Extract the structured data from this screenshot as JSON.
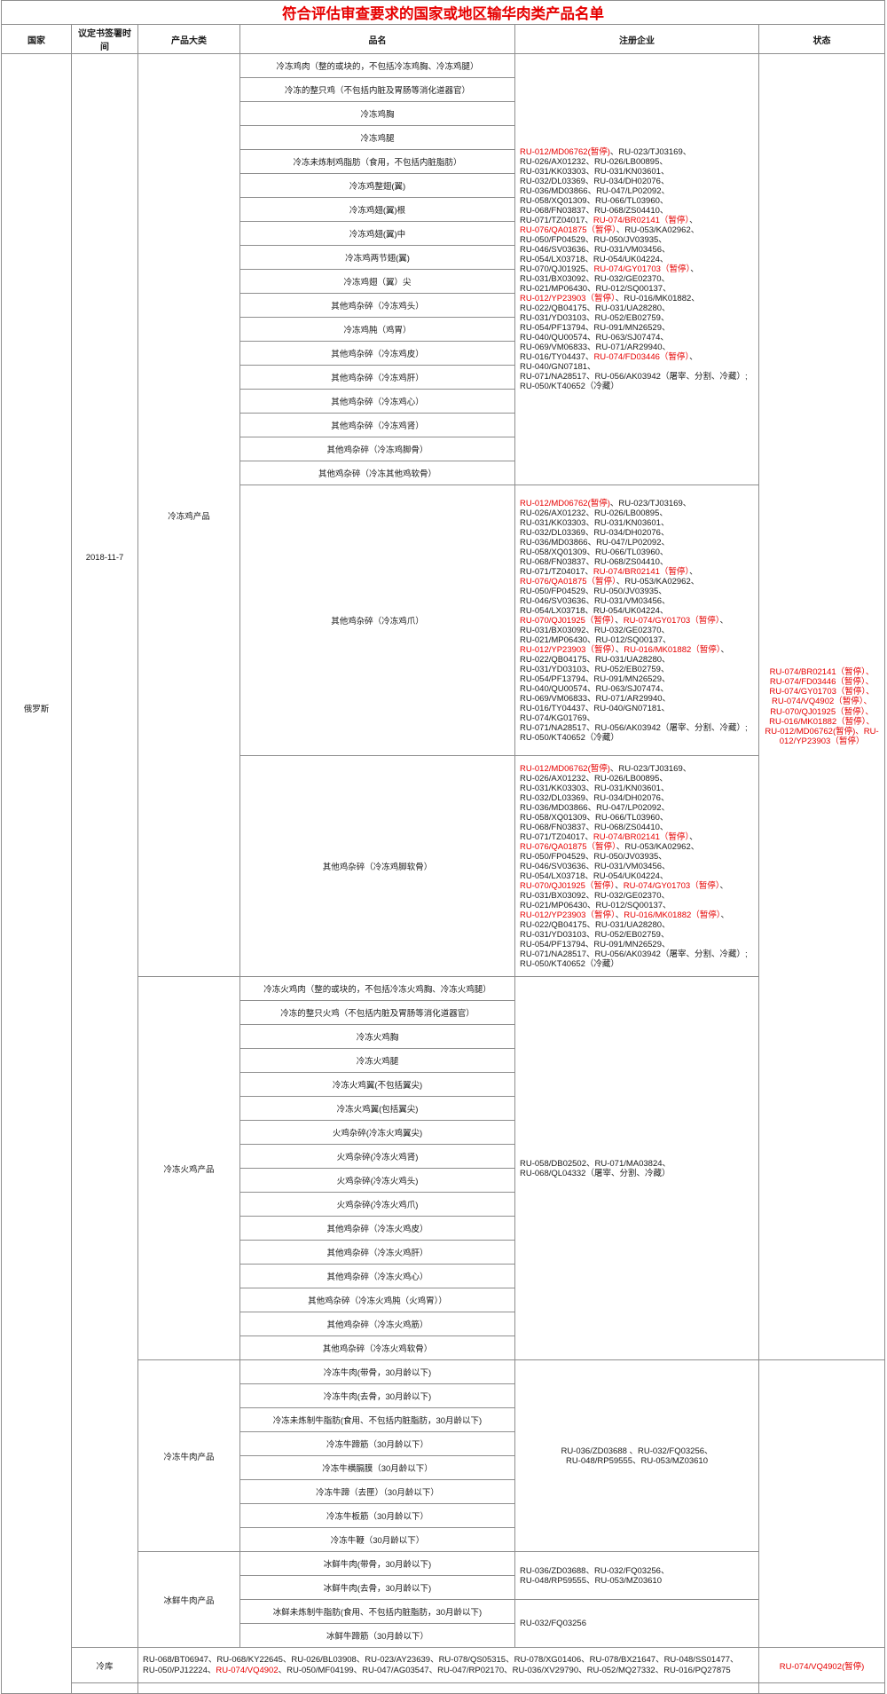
{
  "title": "符合评估审查要求的国家或地区输华肉类产品名单",
  "header": {
    "country": "国家",
    "protocol_date": "议定书签署时间",
    "category": "产品大类",
    "product": "品名",
    "enterprise": "注册企业",
    "status": "状态"
  },
  "country": "俄罗斯",
  "protocol_date": "2018-11-7",
  "status_color": "#e60000",
  "frozen_chicken": {
    "category": "冷冻鸡产品",
    "products": [
      "冷冻鸡肉（整的或块的，不包括冷冻鸡胸、冷冻鸡腿）",
      "冷冻的整只鸡（不包括内脏及胃肠等消化道器官）",
      "冷冻鸡胸",
      "冷冻鸡腿",
      "冷冻未炼制鸡脂肪（食用，不包括内脏脂肪）",
      "冷冻鸡整翅(翼)",
      "冷冻鸡翅(翼)根",
      "冷冻鸡翅(翼)中",
      "冷冻鸡两节翅(翼)",
      "冷冻鸡翅（翼）尖",
      "其他鸡杂碎（冷冻鸡头）",
      "冷冻鸡肫（鸡胃）",
      "其他鸡杂碎（冷冻鸡皮）",
      "其他鸡杂碎（冷冻鸡肝）",
      "其他鸡杂碎（冷冻鸡心）",
      "其他鸡杂碎（冷冻鸡肾）",
      "其他鸡杂碎（冷冻鸡脚骨）",
      "其他鸡杂碎（冷冻其他鸡软骨）"
    ],
    "claw_product": "其他鸡杂碎（冷冻鸡爪）",
    "cartilage_product": "其他鸡杂碎（冷冻鸡脚软骨）",
    "enterprises_main": [
      [
        {
          "t": "RU-012/MD06762(暂停)",
          "r": 1
        },
        {
          "t": "、RU-023/TJ03169、"
        }
      ],
      [
        {
          "t": "RU-026/AX01232、RU-026/LB00895、"
        }
      ],
      [
        {
          "t": "RU-031/KK03303、RU-031/KN03601、"
        }
      ],
      [
        {
          "t": "RU-032/DL03369、RU-034/DH02076、"
        }
      ],
      [
        {
          "t": "RU-036/MD03866、RU-047/LP02092、"
        }
      ],
      [
        {
          "t": "RU-058/XQ01309、RU-066/TL03960、"
        }
      ],
      [
        {
          "t": "RU-068/FN03837、RU-068/ZS04410、"
        }
      ],
      [
        {
          "t": "RU-071/TZ04017、"
        },
        {
          "t": "RU-074/BR02141（暂停）",
          "r": 1
        },
        {
          "t": "、"
        }
      ],
      [
        {
          "t": "RU-076/QA01875（暂停）",
          "r": 1
        },
        {
          "t": "、RU-053/KA02962、"
        }
      ],
      [
        {
          "t": "RU-050/FP04529、RU-050/JV03935、"
        }
      ],
      [
        {
          "t": "RU-046/SV03636、RU-031/VM03456、"
        }
      ],
      [
        {
          "t": "RU-054/LX03718、RU-054/UK04224、"
        }
      ],
      [
        {
          "t": "RU-070/QJ01925、"
        },
        {
          "t": "RU-074/GY01703（暂停）",
          "r": 1
        },
        {
          "t": "、"
        }
      ],
      [
        {
          "t": "RU-031/BX03092、RU-032/GE02370、"
        }
      ],
      [
        {
          "t": "RU-021/MP06430、RU-012/SQ00137、"
        }
      ],
      [
        {
          "t": "RU-012/YP23903（暂停）",
          "r": 1
        },
        {
          "t": "、RU-016/MK01882、"
        }
      ],
      [
        {
          "t": "RU-022/QB04175、RU-031/UA28280、"
        }
      ],
      [
        {
          "t": "RU-031/YD03103、RU-052/EB02759、"
        }
      ],
      [
        {
          "t": "RU-054/PF13794、RU-091/MN26529、"
        }
      ],
      [
        {
          "t": "RU-040/QU00574、RU-063/SJ07474、"
        }
      ],
      [
        {
          "t": "RU-069/VM06833、RU-071/AR29940、"
        }
      ],
      [
        {
          "t": "RU-016/TY04437、"
        },
        {
          "t": "RU-074/FD03446（暂停）",
          "r": 1
        },
        {
          "t": "、"
        }
      ],
      [
        {
          "t": "RU-040/GN07181、"
        }
      ],
      [
        {
          "t": "RU-071/NA28517、RU-056/AK03942（屠宰、分割、冷藏）;"
        }
      ],
      [
        {
          "t": "RU-050/KT40652（冷藏）"
        }
      ]
    ],
    "enterprises_claw": [
      [
        {
          "t": "RU-012/MD06762(暂停)",
          "r": 1
        },
        {
          "t": "、RU-023/TJ03169、"
        }
      ],
      [
        {
          "t": "RU-026/AX01232、RU-026/LB00895、"
        }
      ],
      [
        {
          "t": "RU-031/KK03303、RU-031/KN03601、"
        }
      ],
      [
        {
          "t": "RU-032/DL03369、RU-034/DH02076、"
        }
      ],
      [
        {
          "t": "RU-036/MD03866、RU-047/LP02092、"
        }
      ],
      [
        {
          "t": "RU-058/XQ01309、RU-066/TL03960、"
        }
      ],
      [
        {
          "t": "RU-068/FN03837、RU-068/ZS04410、"
        }
      ],
      [
        {
          "t": "RU-071/TZ04017、"
        },
        {
          "t": "RU-074/BR02141（暂停）",
          "r": 1
        },
        {
          "t": "、"
        }
      ],
      [
        {
          "t": "RU-076/QA01875（暂停）",
          "r": 1
        },
        {
          "t": "、RU-053/KA02962、"
        }
      ],
      [
        {
          "t": "RU-050/FP04529、RU-050/JV03935、"
        }
      ],
      [
        {
          "t": "RU-046/SV03636、RU-031/VM03456、"
        }
      ],
      [
        {
          "t": "RU-054/LX03718、RU-054/UK04224、"
        }
      ],
      [
        {
          "t": "RU-070/QJ01925（暂停）",
          "r": 1
        },
        {
          "t": "、"
        },
        {
          "t": "RU-074/GY01703（暂停）",
          "r": 1
        },
        {
          "t": "、"
        }
      ],
      [
        {
          "t": "RU-031/BX03092、RU-032/GE02370、"
        }
      ],
      [
        {
          "t": "RU-021/MP06430、RU-012/SQ00137、"
        }
      ],
      [
        {
          "t": "RU-012/YP23903（暂停）",
          "r": 1
        },
        {
          "t": "、"
        },
        {
          "t": "RU-016/MK01882（暂停）",
          "r": 1
        },
        {
          "t": "、"
        }
      ],
      [
        {
          "t": "RU-022/QB04175、RU-031/UA28280、"
        }
      ],
      [
        {
          "t": "RU-031/YD03103、RU-052/EB02759、"
        }
      ],
      [
        {
          "t": "RU-054/PF13794、RU-091/MN26529、"
        }
      ],
      [
        {
          "t": "RU-040/QU00574、RU-063/SJ07474、"
        }
      ],
      [
        {
          "t": "RU-069/VM06833、RU-071/AR29940、"
        }
      ],
      [
        {
          "t": "RU-016/TY04437、RU-040/GN07181、"
        }
      ],
      [
        {
          "t": "RU-074/KG01769、"
        }
      ],
      [
        {
          "t": "RU-071/NA28517、RU-056/AK03942（屠宰、分割、冷藏）;"
        }
      ],
      [
        {
          "t": "RU-050/KT40652（冷藏）"
        }
      ]
    ],
    "enterprises_cartilage": [
      [
        {
          "t": "RU-012/MD06762(暂停)",
          "r": 1
        },
        {
          "t": "、RU-023/TJ03169、"
        }
      ],
      [
        {
          "t": "RU-026/AX01232、RU-026/LB00895、"
        }
      ],
      [
        {
          "t": "RU-031/KK03303、RU-031/KN03601、"
        }
      ],
      [
        {
          "t": "RU-032/DL03369、RU-034/DH02076、"
        }
      ],
      [
        {
          "t": "RU-036/MD03866、RU-047/LP02092、"
        }
      ],
      [
        {
          "t": "RU-058/XQ01309、RU-066/TL03960、"
        }
      ],
      [
        {
          "t": "RU-068/FN03837、RU-068/ZS04410、"
        }
      ],
      [
        {
          "t": "RU-071/TZ04017、"
        },
        {
          "t": "RU-074/BR02141（暂停）",
          "r": 1
        },
        {
          "t": "、"
        }
      ],
      [
        {
          "t": "RU-076/QA01875（暂停）",
          "r": 1
        },
        {
          "t": "、RU-053/KA02962、"
        }
      ],
      [
        {
          "t": "RU-050/FP04529、RU-050/JV03935、"
        }
      ],
      [
        {
          "t": "RU-046/SV03636、RU-031/VM03456、"
        }
      ],
      [
        {
          "t": "RU-054/LX03718、RU-054/UK04224、"
        }
      ],
      [
        {
          "t": "RU-070/QJ01925（暂停）",
          "r": 1
        },
        {
          "t": "、"
        },
        {
          "t": "RU-074/GY01703（暂停）",
          "r": 1
        },
        {
          "t": "、"
        }
      ],
      [
        {
          "t": "RU-031/BX03092、RU-032/GE02370、"
        }
      ],
      [
        {
          "t": "RU-021/MP06430、RU-012/SQ00137、"
        }
      ],
      [
        {
          "t": "RU-012/YP23903（暂停）",
          "r": 1
        },
        {
          "t": "、"
        },
        {
          "t": "RU-016/MK01882（暂停）",
          "r": 1
        },
        {
          "t": "、"
        }
      ],
      [
        {
          "t": "RU-022/QB04175、RU-031/UA28280、"
        }
      ],
      [
        {
          "t": "RU-031/YD03103、RU-052/EB02759、"
        }
      ],
      [
        {
          "t": "RU-054/PF13794、RU-091/MN26529、"
        }
      ],
      [
        {
          "t": "RU-071/NA28517、RU-056/AK03942（屠宰、分割、冷藏）;"
        }
      ],
      [
        {
          "t": "RU-050/KT40652（冷藏）"
        }
      ]
    ]
  },
  "frozen_turkey": {
    "category": "冷冻火鸡产品",
    "products": [
      "冷冻火鸡肉（整的或块的，不包括冷冻火鸡胸、冷冻火鸡腿）",
      "冷冻的整只火鸡（不包括内脏及胃肠等消化道器官）",
      "冷冻火鸡胸",
      "冷冻火鸡腿",
      "冷冻火鸡翼(不包括翼尖)",
      "冷冻火鸡翼(包括翼尖)",
      "火鸡杂碎(冷冻火鸡翼尖)",
      "火鸡杂碎(冷冻火鸡肾)",
      "火鸡杂碎(冷冻火鸡头)",
      "火鸡杂碎(冷冻火鸡爪)",
      "其他鸡杂碎（冷冻火鸡皮）",
      "其他鸡杂碎（冷冻火鸡肝）",
      "其他鸡杂碎（冷冻火鸡心）",
      "其他鸡杂碎（冷冻火鸡肫（火鸡胃））",
      "其他鸡杂碎（冷冻火鸡筋）",
      "其他鸡杂碎（冷冻火鸡软骨）"
    ],
    "enterprises": [
      [
        {
          "t": "RU-058/DB02502、RU-071/MA03824、"
        }
      ],
      [
        {
          "t": "RU-068/QL04332（屠宰、分割、冷藏）"
        }
      ]
    ]
  },
  "frozen_beef": {
    "category": "冷冻牛肉产品",
    "products": [
      "冷冻牛肉(带骨，30月龄以下)",
      "冷冻牛肉(去骨，30月龄以下)",
      "冷冻未炼制牛脂肪(食用、不包括内脏脂肪，30月龄以下)",
      "冷冻牛蹄筋（30月龄以下）",
      "冷冻牛横膈膜（30月龄以下）",
      "冷冻牛蹄（去匣）（30月龄以下）",
      "冷冻牛板筋（30月龄以下）",
      "冷冻牛鞭（30月龄以下）"
    ],
    "enterprises": [
      [
        {
          "t": "RU-036/ZD03688 、RU-032/FQ03256、"
        }
      ],
      [
        {
          "t": "RU-048/RP59555、RU-053/MZ03610"
        }
      ]
    ]
  },
  "chilled_beef": {
    "category": "冰鲜牛肉产品",
    "products": [
      "冰鲜牛肉(带骨，30月龄以下)",
      "冰鲜牛肉(去骨，30月龄以下)",
      "冰鲜未炼制牛脂肪(食用、不包括内脏脂肪，30月龄以下)",
      "冰鲜牛蹄筋（30月龄以下）"
    ],
    "enterprises_meat": [
      [
        {
          "t": "RU-036/ZD03688、RU-032/FQ03256、"
        }
      ],
      [
        {
          "t": "RU-048/RP59555、RU-053/MZ03610"
        }
      ]
    ],
    "enterprises_fat": [
      [
        {
          "t": "RU-032/FQ03256"
        }
      ]
    ]
  },
  "cold_storage": {
    "label": "冷库",
    "enterprises": [
      [
        {
          "t": "RU-068/BT06947、RU-068/KY22645、RU-026/BL03908、RU-023/AY23639、RU-078/QS05315、RU-078/XG01406、RU-078/BX21647、RU-048/SS01477、"
        }
      ],
      [
        {
          "t": "RU-050/PJ12224、"
        },
        {
          "t": "RU-074/VQ4902",
          "r": 1
        },
        {
          "t": "、RU-050/MF04199、RU-047/AG03547、RU-047/RP02170、RU-036/XV29790、RU-052/MQ27332、RU-016/PQ27875"
        }
      ]
    ],
    "status": [
      [
        {
          "t": "RU-074/VQ4902(暂停)",
          "r": 1
        }
      ]
    ]
  },
  "status_summary": [
    [
      {
        "t": "RU-074/BR02141（暂停）、",
        "r": 1
      }
    ],
    [
      {
        "t": "RU-074/FD03446（暂停）、",
        "r": 1
      }
    ],
    [
      {
        "t": "RU-074/GY01703（暂停）、",
        "r": 1
      }
    ],
    [
      {
        "t": "RU-074/VQ4902（暂停）、",
        "r": 1
      }
    ],
    [
      {
        "t": "RU-070/QJ01925（暂停）、",
        "r": 1
      }
    ],
    [
      {
        "t": "RU-016/MK01882（暂停）、RU-012/MD06762(暂停)、RU-012/YP23903（暂停）",
        "r": 1
      }
    ]
  ]
}
